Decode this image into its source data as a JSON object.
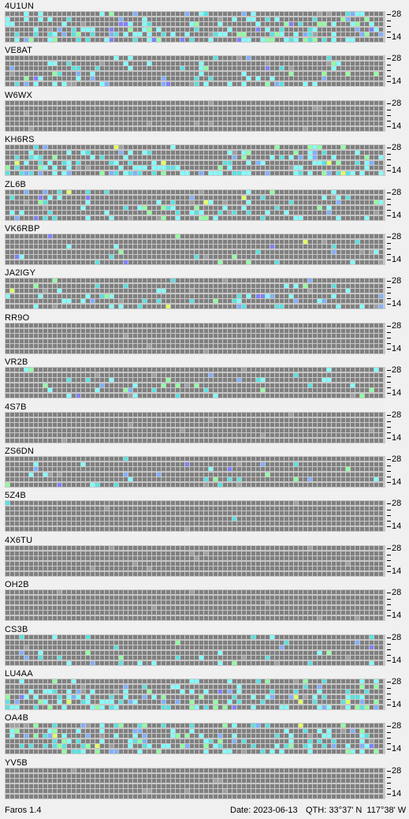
{
  "app": {
    "name": "Faros 1.4"
  },
  "status": {
    "date_text": "Date: 2023-06-13",
    "qth_text": "QTH: 33°37' N  117°38' W"
  },
  "scale": {
    "top_label": "28",
    "bottom_label": "14"
  },
  "colors": {
    "grid_line": "#c8c8c8",
    "cell_empty": "#808080",
    "cell_light": "#a0a0a0",
    "signal_weak": "#5ce0e0",
    "signal_mid": "#80ffff",
    "signal_green": "#90ffa0",
    "signal_blue": "#80b0ff",
    "signal_violet": "#8080ff",
    "signal_yellow": "#e0ff60"
  },
  "beacons": [
    {
      "callsign": "4U1UN",
      "activity": "high"
    },
    {
      "callsign": "VE8AT",
      "activity": "medium"
    },
    {
      "callsign": "W6WX",
      "activity": "none"
    },
    {
      "callsign": "KH6RS",
      "activity": "high"
    },
    {
      "callsign": "ZL6B",
      "activity": "medium"
    },
    {
      "callsign": "VK6RBP",
      "activity": "low"
    },
    {
      "callsign": "JA2IGY",
      "activity": "medium"
    },
    {
      "callsign": "RR9O",
      "activity": "none"
    },
    {
      "callsign": "VR2B",
      "activity": "low"
    },
    {
      "callsign": "4S7B",
      "activity": "none"
    },
    {
      "callsign": "ZS6DN",
      "activity": "low"
    },
    {
      "callsign": "5Z4B",
      "activity": "minimal"
    },
    {
      "callsign": "4X6TU",
      "activity": "none"
    },
    {
      "callsign": "OH2B",
      "activity": "none"
    },
    {
      "callsign": "CS3B",
      "activity": "low"
    },
    {
      "callsign": "LU4AA",
      "activity": "high"
    },
    {
      "callsign": "OA4B",
      "activity": "high"
    },
    {
      "callsign": "YV5B",
      "activity": "none"
    }
  ]
}
